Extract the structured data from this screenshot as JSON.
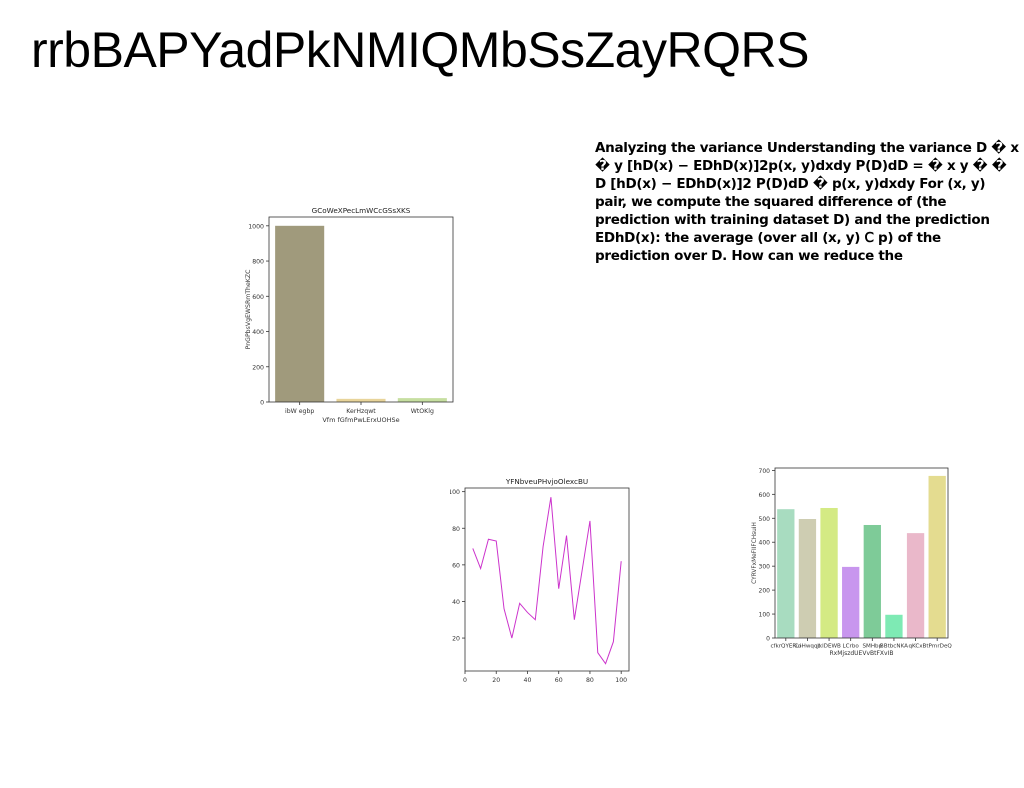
{
  "page": {
    "title": "rrbBAPYadPkNMIQMbSsZayRQRS",
    "body_text": "Analyzing the variance Understanding the variance D � x � y [hD(x) − EDhD(x)]2p(x, y)dxdy P(D)dD = � x y � � D [hD(x) − EDhD(x)]2 P(D)dD � p(x, y)dxdy For (x, y) pair, we compute the squared difference of (the prediction with training dataset D) and the prediction EDhD(x): the average (over all (x, y) 𝖢 p) of the prediction over D. How can we reduce the"
  },
  "chart_data": [
    {
      "type": "bar",
      "title": "GCoWeXPecLmWCcGSsXKS",
      "xlabel": "Vfm fGfmPwLErxUOHSe",
      "ylabel": "PnGPbsVgEWSRmTheKZC",
      "categories": [
        "ibW egbp",
        "KerHzqwt",
        "WtOKlg"
      ],
      "values": [
        1000,
        18,
        22
      ],
      "colors": [
        "#a09a7c",
        "#e8d49a",
        "#c6dfa0"
      ],
      "ylim": [
        0,
        1050
      ],
      "yticks": [
        0,
        200,
        400,
        600,
        800,
        1000
      ],
      "grid": false
    },
    {
      "type": "line",
      "title": "YFNbveuPHvjoOlexcBU",
      "xlabel": "",
      "ylabel": "",
      "x": [
        5,
        10,
        15,
        20,
        25,
        30,
        35,
        40,
        45,
        50,
        55,
        60,
        65,
        70,
        75,
        80,
        85,
        90,
        95,
        100
      ],
      "series": [
        {
          "color": "#cc33cc",
          "values": [
            69,
            58,
            74,
            73,
            36,
            20,
            39,
            34,
            30,
            70,
            97,
            47,
            76,
            30,
            57,
            84,
            12,
            6,
            18,
            62
          ]
        }
      ],
      "xlim": [
        0,
        105
      ],
      "ylim": [
        2,
        102
      ],
      "xticks": [
        0,
        20,
        40,
        60,
        80,
        100
      ],
      "yticks": [
        20,
        40,
        60,
        80,
        100
      ],
      "grid": false
    },
    {
      "type": "bar",
      "title": "",
      "xlabel": "RxMjszdUEVvBtFXvIB",
      "ylabel": "CYRVFxMeFIIFCHsuiH",
      "categories": [
        "cfkrQYERui",
        "CoHwqqc",
        "JklDEWB",
        "LCrbo",
        "SMHbp",
        "BBtbcNKA",
        "qKCx",
        "BtPmrDeQ"
      ],
      "values": [
        538,
        497,
        543,
        297,
        472,
        97,
        438,
        677
      ],
      "colors": [
        "#a8dcc0",
        "#cecdb2",
        "#d4ea84",
        "#c896ee",
        "#7ecb98",
        "#7eeab4",
        "#eab8ca",
        "#e4dc90"
      ],
      "ylim": [
        0,
        710
      ],
      "yticks": [
        0,
        100,
        200,
        300,
        400,
        500,
        600,
        700
      ],
      "grid": false
    }
  ]
}
